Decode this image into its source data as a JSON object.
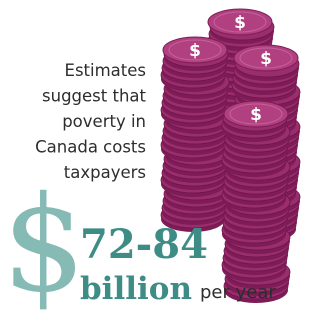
{
  "intro_lines": [
    "Estimates",
    "suggest that",
    "poverty in",
    "Canada costs",
    "taxpayers"
  ],
  "dollar_sign": "$",
  "amount": "72-84",
  "unit": "billion",
  "period": "per year"
}
